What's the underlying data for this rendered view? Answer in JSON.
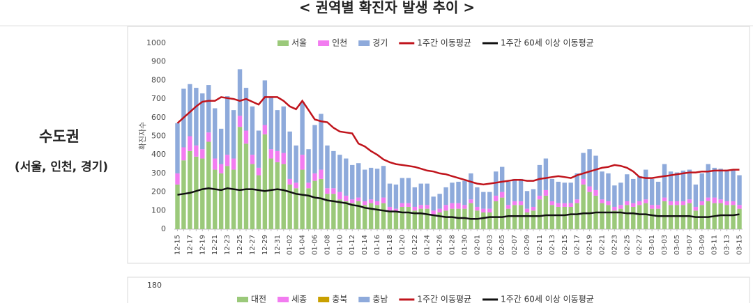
{
  "title": "< 권역별 확진자 발생 추이 >",
  "panel": {
    "label": "수도권",
    "sublabel": "(서울, 인천, 경기)"
  },
  "chart_data": [
    {
      "type": "bar",
      "ylabel": "확진자수",
      "stacked": true,
      "grid": false,
      "ylim": [
        0,
        1000
      ],
      "yticks": [
        0,
        100,
        200,
        300,
        400,
        500,
        600,
        700,
        800,
        900,
        1000
      ],
      "categories": [
        "12-15",
        null,
        "12-17",
        null,
        "12-19",
        null,
        "12-21",
        null,
        "12-23",
        null,
        "12-25",
        null,
        "12-27",
        null,
        "12-29",
        null,
        "12-31",
        null,
        "01-02",
        null,
        "01-04",
        null,
        "01-06",
        null,
        "01-08",
        null,
        "01-10",
        null,
        "01-12",
        null,
        "01-14",
        null,
        "01-16",
        null,
        "01-18",
        null,
        "01-20",
        null,
        "01-22",
        null,
        "01-24",
        null,
        "01-26",
        null,
        "01-28",
        null,
        "01-30",
        null,
        "02-01",
        null,
        "02-03",
        null,
        "02-05",
        null,
        "02-07",
        null,
        "02-09",
        null,
        "02-11",
        null,
        "02-13",
        null,
        "02-15",
        null,
        "02-17",
        null,
        "02-19",
        null,
        "02-21",
        null,
        "02-23",
        null,
        "02-25",
        null,
        "02-27",
        null,
        "03-01",
        null,
        "03-03",
        null,
        "03-05",
        null,
        "03-07",
        null,
        "03-09",
        null,
        "03-11",
        null,
        "03-13",
        null,
        "03-15"
      ],
      "series": [
        {
          "name": "서울",
          "type": "bar",
          "color": "#9bc97a",
          "values": [
            240,
            370,
            420,
            390,
            380,
            470,
            320,
            300,
            340,
            320,
            550,
            460,
            350,
            290,
            510,
            380,
            360,
            350,
            240,
            220,
            320,
            220,
            260,
            270,
            190,
            190,
            160,
            150,
            140,
            150,
            130,
            140,
            130,
            140,
            100,
            90,
            120,
            120,
            100,
            110,
            110,
            80,
            90,
            100,
            110,
            110,
            110,
            140,
            100,
            90,
            90,
            150,
            170,
            110,
            130,
            130,
            90,
            100,
            160,
            180,
            130,
            120,
            120,
            120,
            140,
            240,
            200,
            180,
            140,
            130,
            100,
            110,
            130,
            120,
            130,
            140,
            110,
            110,
            150,
            130,
            130,
            130,
            140,
            100,
            130,
            150,
            140,
            140,
            130,
            130,
            110
          ]
        },
        {
          "name": "인천",
          "type": "bar",
          "color": "#f27cf0",
          "values": [
            60,
            70,
            80,
            60,
            50,
            50,
            60,
            50,
            60,
            60,
            60,
            70,
            50,
            40,
            50,
            50,
            60,
            60,
            30,
            30,
            80,
            30,
            40,
            50,
            30,
            30,
            40,
            30,
            20,
            20,
            20,
            20,
            20,
            30,
            20,
            20,
            20,
            20,
            20,
            20,
            20,
            20,
            20,
            30,
            30,
            30,
            20,
            20,
            20,
            20,
            20,
            30,
            30,
            20,
            20,
            20,
            20,
            20,
            20,
            30,
            20,
            20,
            20,
            20,
            20,
            30,
            30,
            30,
            20,
            20,
            20,
            20,
            20,
            20,
            20,
            20,
            20,
            20,
            20,
            20,
            20,
            20,
            20,
            20,
            20,
            20,
            30,
            20,
            20,
            20,
            20
          ]
        },
        {
          "name": "경기",
          "type": "bar",
          "color": "#8eaadb",
          "values": [
            270,
            315,
            280,
            310,
            300,
            255,
            270,
            190,
            315,
            260,
            250,
            230,
            260,
            200,
            240,
            280,
            220,
            250,
            255,
            200,
            285,
            180,
            260,
            300,
            230,
            200,
            200,
            200,
            185,
            185,
            170,
            170,
            175,
            170,
            125,
            130,
            135,
            135,
            105,
            115,
            115,
            75,
            80,
            95,
            110,
            115,
            130,
            140,
            105,
            90,
            90,
            130,
            135,
            125,
            120,
            120,
            95,
            95,
            165,
            170,
            120,
            115,
            110,
            110,
            140,
            140,
            200,
            185,
            150,
            150,
            115,
            120,
            145,
            130,
            135,
            160,
            140,
            125,
            180,
            160,
            155,
            165,
            160,
            120,
            150,
            180,
            160,
            165,
            170,
            170,
            160
          ]
        },
        {
          "name": "1주간 이동평균",
          "type": "line",
          "color": "#c0141c",
          "values": [
            570,
            600,
            630,
            660,
            685,
            690,
            690,
            710,
            705,
            700,
            690,
            700,
            685,
            670,
            710,
            710,
            710,
            690,
            660,
            645,
            690,
            640,
            590,
            580,
            575,
            545,
            525,
            520,
            515,
            460,
            445,
            420,
            400,
            375,
            360,
            350,
            345,
            340,
            335,
            325,
            315,
            310,
            300,
            295,
            285,
            275,
            265,
            255,
            245,
            240,
            245,
            250,
            255,
            260,
            265,
            265,
            260,
            260,
            270,
            275,
            280,
            285,
            280,
            275,
            290,
            300,
            310,
            320,
            330,
            335,
            345,
            340,
            330,
            310,
            280,
            275,
            275,
            280,
            285,
            290,
            295,
            300,
            305,
            305,
            310,
            310,
            315,
            315,
            315,
            320,
            320
          ]
        },
        {
          "name": "1주간 60세 이상 이동평균",
          "type": "line",
          "color": "#111111",
          "values": [
            185,
            190,
            195,
            205,
            215,
            220,
            215,
            210,
            220,
            215,
            210,
            215,
            215,
            210,
            205,
            210,
            215,
            210,
            200,
            190,
            185,
            180,
            170,
            165,
            155,
            150,
            145,
            140,
            130,
            125,
            115,
            110,
            105,
            100,
            95,
            95,
            90,
            90,
            85,
            85,
            80,
            75,
            70,
            65,
            65,
            60,
            60,
            55,
            55,
            60,
            65,
            65,
            65,
            70,
            70,
            70,
            70,
            70,
            70,
            75,
            75,
            75,
            75,
            80,
            80,
            85,
            85,
            90,
            90,
            90,
            90,
            90,
            85,
            85,
            80,
            80,
            75,
            70,
            70,
            70,
            70,
            70,
            70,
            65,
            65,
            65,
            70,
            75,
            75,
            75,
            80
          ]
        }
      ]
    },
    {
      "type": "bar",
      "yticks": [
        180
      ],
      "series": [
        {
          "name": "대전",
          "type": "bar",
          "color": "#9bc97a"
        },
        {
          "name": "세종",
          "type": "bar",
          "color": "#f27cf0"
        },
        {
          "name": "충북",
          "type": "bar",
          "color": "#c9a000"
        },
        {
          "name": "충남",
          "type": "bar",
          "color": "#8eaadb"
        },
        {
          "name": "1주간 이동평균",
          "type": "line",
          "color": "#c0141c"
        },
        {
          "name": "1주간 60세 이상 이동평균",
          "type": "line",
          "color": "#111111"
        }
      ]
    }
  ]
}
